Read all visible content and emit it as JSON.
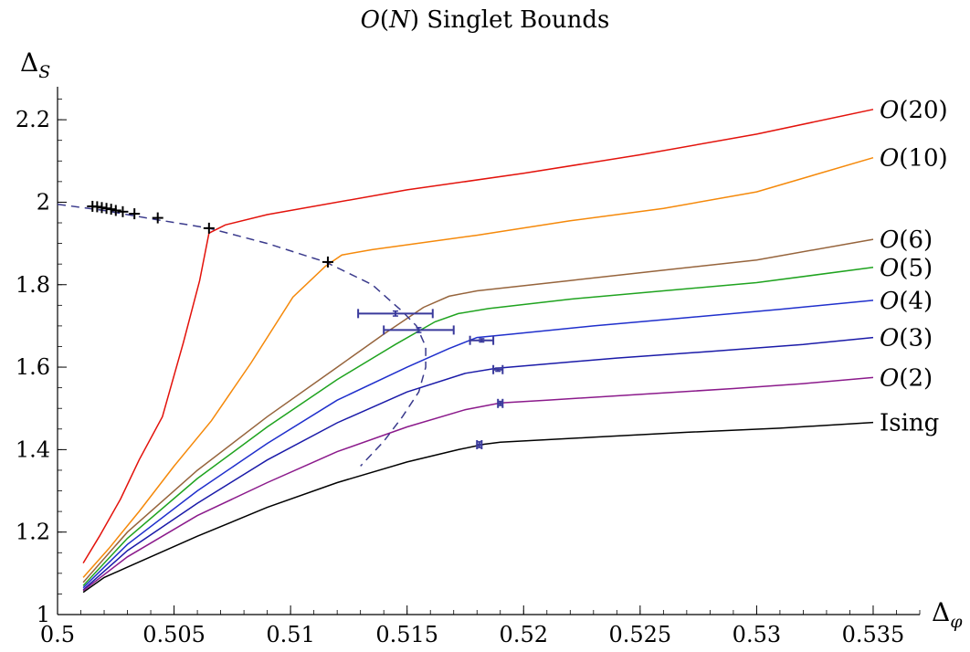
{
  "chart_data": {
    "type": "line",
    "title": "O(N) Singlet Bounds",
    "xlabel": "Δφ",
    "ylabel": "ΔS",
    "xlim": [
      0.5,
      0.537
    ],
    "ylim": [
      1.0,
      2.28
    ],
    "xticks": [
      {
        "value": 0.5,
        "label": "0.5"
      },
      {
        "value": 0.505,
        "label": "0.505"
      },
      {
        "value": 0.51,
        "label": "0.51"
      },
      {
        "value": 0.515,
        "label": "0.515"
      },
      {
        "value": 0.52,
        "label": "0.52"
      },
      {
        "value": 0.525,
        "label": "0.525"
      },
      {
        "value": 0.53,
        "label": "0.53"
      },
      {
        "value": 0.535,
        "label": "0.535"
      }
    ],
    "yticks": [
      {
        "value": 1.0,
        "label": "1"
      },
      {
        "value": 1.2,
        "label": "1.2"
      },
      {
        "value": 1.4,
        "label": "1.4"
      },
      {
        "value": 1.6,
        "label": "1.6"
      },
      {
        "value": 1.8,
        "label": "1.8"
      },
      {
        "value": 2.0,
        "label": "2"
      },
      {
        "value": 2.2,
        "label": "2.2"
      }
    ],
    "series": [
      {
        "name": "O(20)",
        "color": "#e3120b",
        "points": [
          [
            0.5011,
            1.125
          ],
          [
            0.5018,
            1.19
          ],
          [
            0.5027,
            1.28
          ],
          [
            0.5035,
            1.375
          ],
          [
            0.5045,
            1.48
          ],
          [
            0.5054,
            1.66
          ],
          [
            0.5061,
            1.81
          ],
          [
            0.5065,
            1.925
          ],
          [
            0.5072,
            1.945
          ],
          [
            0.509,
            1.97
          ],
          [
            0.515,
            2.03
          ],
          [
            0.52,
            2.07
          ],
          [
            0.525,
            2.115
          ],
          [
            0.53,
            2.165
          ],
          [
            0.535,
            2.225
          ]
        ]
      },
      {
        "name": "O(10)",
        "color": "#f5890a",
        "points": [
          [
            0.5011,
            1.09
          ],
          [
            0.5022,
            1.16
          ],
          [
            0.5035,
            1.25
          ],
          [
            0.505,
            1.36
          ],
          [
            0.5066,
            1.47
          ],
          [
            0.5083,
            1.61
          ],
          [
            0.5101,
            1.77
          ],
          [
            0.5115,
            1.845
          ],
          [
            0.5122,
            1.872
          ],
          [
            0.5135,
            1.885
          ],
          [
            0.518,
            1.92
          ],
          [
            0.522,
            1.955
          ],
          [
            0.526,
            1.985
          ],
          [
            0.53,
            2.025
          ],
          [
            0.535,
            2.108
          ]
        ]
      },
      {
        "name": "O(6)",
        "color": "#96643c",
        "points": [
          [
            0.5011,
            1.078
          ],
          [
            0.503,
            1.2
          ],
          [
            0.506,
            1.35
          ],
          [
            0.509,
            1.48
          ],
          [
            0.512,
            1.6
          ],
          [
            0.514,
            1.68
          ],
          [
            0.5157,
            1.745
          ],
          [
            0.5168,
            1.772
          ],
          [
            0.518,
            1.785
          ],
          [
            0.522,
            1.81
          ],
          [
            0.526,
            1.835
          ],
          [
            0.53,
            1.86
          ],
          [
            0.535,
            1.91
          ]
        ]
      },
      {
        "name": "O(5)",
        "color": "#1fa31f",
        "points": [
          [
            0.5011,
            1.07
          ],
          [
            0.503,
            1.185
          ],
          [
            0.506,
            1.33
          ],
          [
            0.509,
            1.455
          ],
          [
            0.512,
            1.57
          ],
          [
            0.5145,
            1.655
          ],
          [
            0.5162,
            1.71
          ],
          [
            0.5172,
            1.73
          ],
          [
            0.5185,
            1.742
          ],
          [
            0.522,
            1.765
          ],
          [
            0.526,
            1.785
          ],
          [
            0.53,
            1.805
          ],
          [
            0.535,
            1.842
          ]
        ]
      },
      {
        "name": "O(4)",
        "color": "#1f2fcc",
        "points": [
          [
            0.5011,
            1.065
          ],
          [
            0.503,
            1.17
          ],
          [
            0.506,
            1.3
          ],
          [
            0.509,
            1.415
          ],
          [
            0.512,
            1.52
          ],
          [
            0.515,
            1.6
          ],
          [
            0.5168,
            1.645
          ],
          [
            0.518,
            1.672
          ],
          [
            0.5195,
            1.68
          ],
          [
            0.523,
            1.7
          ],
          [
            0.527,
            1.72
          ],
          [
            0.531,
            1.74
          ],
          [
            0.535,
            1.762
          ]
        ]
      },
      {
        "name": "O(3)",
        "color": "#1a1aa8",
        "points": [
          [
            0.5011,
            1.06
          ],
          [
            0.503,
            1.155
          ],
          [
            0.506,
            1.27
          ],
          [
            0.509,
            1.375
          ],
          [
            0.512,
            1.465
          ],
          [
            0.515,
            1.54
          ],
          [
            0.5175,
            1.585
          ],
          [
            0.5188,
            1.597
          ],
          [
            0.52,
            1.603
          ],
          [
            0.524,
            1.622
          ],
          [
            0.528,
            1.638
          ],
          [
            0.532,
            1.655
          ],
          [
            0.535,
            1.672
          ]
        ]
      },
      {
        "name": "O(2)",
        "color": "#8b1a8b",
        "points": [
          [
            0.5011,
            1.058
          ],
          [
            0.503,
            1.14
          ],
          [
            0.506,
            1.24
          ],
          [
            0.509,
            1.32
          ],
          [
            0.512,
            1.395
          ],
          [
            0.515,
            1.455
          ],
          [
            0.5175,
            1.497
          ],
          [
            0.519,
            1.513
          ],
          [
            0.521,
            1.52
          ],
          [
            0.525,
            1.534
          ],
          [
            0.529,
            1.548
          ],
          [
            0.532,
            1.56
          ],
          [
            0.535,
            1.575
          ]
        ]
      },
      {
        "name": "Ising",
        "color": "#000000",
        "points": [
          [
            0.5011,
            1.054
          ],
          [
            0.502,
            1.09
          ],
          [
            0.503,
            1.115
          ],
          [
            0.506,
            1.19
          ],
          [
            0.509,
            1.26
          ],
          [
            0.512,
            1.32
          ],
          [
            0.515,
            1.37
          ],
          [
            0.5172,
            1.4
          ],
          [
            0.5183,
            1.413
          ],
          [
            0.519,
            1.418
          ],
          [
            0.523,
            1.43
          ],
          [
            0.527,
            1.442
          ],
          [
            0.531,
            1.452
          ],
          [
            0.535,
            1.466
          ]
        ]
      }
    ],
    "dashed_curve": {
      "color": "#3a3a8c",
      "points": [
        [
          0.5,
          1.995
        ],
        [
          0.502,
          1.98
        ],
        [
          0.504,
          1.96
        ],
        [
          0.5065,
          1.937
        ],
        [
          0.509,
          1.9
        ],
        [
          0.5115,
          1.855
        ],
        [
          0.5135,
          1.8
        ],
        [
          0.5148,
          1.735
        ],
        [
          0.5154,
          1.7
        ],
        [
          0.5158,
          1.65
        ],
        [
          0.5158,
          1.6
        ],
        [
          0.5155,
          1.54
        ],
        [
          0.5148,
          1.48
        ],
        [
          0.514,
          1.42
        ],
        [
          0.513,
          1.36
        ]
      ]
    },
    "plus_markers": [
      [
        0.5015,
        1.99
      ],
      [
        0.5017,
        1.989
      ],
      [
        0.5019,
        1.987
      ],
      [
        0.5021,
        1.985
      ],
      [
        0.5023,
        1.983
      ],
      [
        0.5025,
        1.98
      ],
      [
        0.5028,
        1.977
      ],
      [
        0.5033,
        1.972
      ],
      [
        0.5043,
        1.962
      ],
      [
        0.5065,
        1.937
      ],
      [
        0.5116,
        1.855
      ]
    ],
    "error_points": [
      {
        "x": 0.5145,
        "y": 1.73,
        "xerr": 0.0016,
        "yerr": 0.006
      },
      {
        "x": 0.5155,
        "y": 1.69,
        "xerr": 0.0015,
        "yerr": 0.006
      },
      {
        "x": 0.5182,
        "y": 1.665,
        "xerr": 0.0005,
        "yerr": 0.004
      },
      {
        "x": 0.5189,
        "y": 1.594,
        "xerr": 0.0002,
        "yerr": 0.004
      },
      {
        "x": 0.519,
        "y": 1.512,
        "xerr": 0.0001,
        "yerr": 0.005
      },
      {
        "x": 0.5181,
        "y": 1.412,
        "xerr": 0.0001,
        "yerr": 0.007
      }
    ],
    "legend": "curve-end-labels"
  }
}
